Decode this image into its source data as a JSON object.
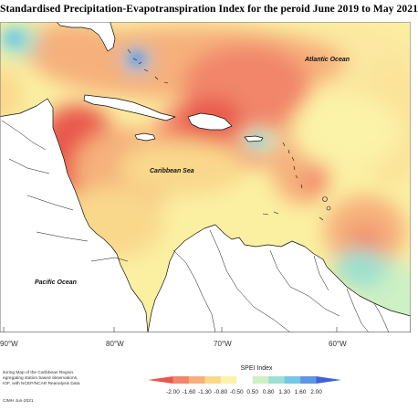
{
  "title": "Standardised Precipitation-Evapotranspiration Index for the peroid June 2019 to May 2021",
  "labels": {
    "atlantic": "Atlantic Ocean",
    "caribbean": "Caribbean Sea",
    "pacific": "Pacific Ocean"
  },
  "longitude_ticks": [
    "90°W",
    "80°W",
    "70°W",
    "60°W"
  ],
  "legend": {
    "title": "SPEI Index",
    "ticks": [
      "-2.00",
      "-1.60",
      "-1.30",
      "-0.80",
      "-0.50",
      "0.50",
      "0.80",
      "1.30",
      "1.60",
      "2.00"
    ],
    "colors": [
      "#e8584b",
      "#f1866a",
      "#f6b07c",
      "#f9d88c",
      "#fbf3a8",
      "#ffffff",
      "#cdf0c4",
      "#9ce0d0",
      "#76c6e6",
      "#5d97e2",
      "#3f62d6"
    ]
  },
  "credit": [
    "itoring Map of the Caribbean Region.",
    "egregating station based observations,",
    "IOF, with NCEP/NCAR Reanalysis Data"
  ],
  "issued": "CIMH Jun-2021"
}
